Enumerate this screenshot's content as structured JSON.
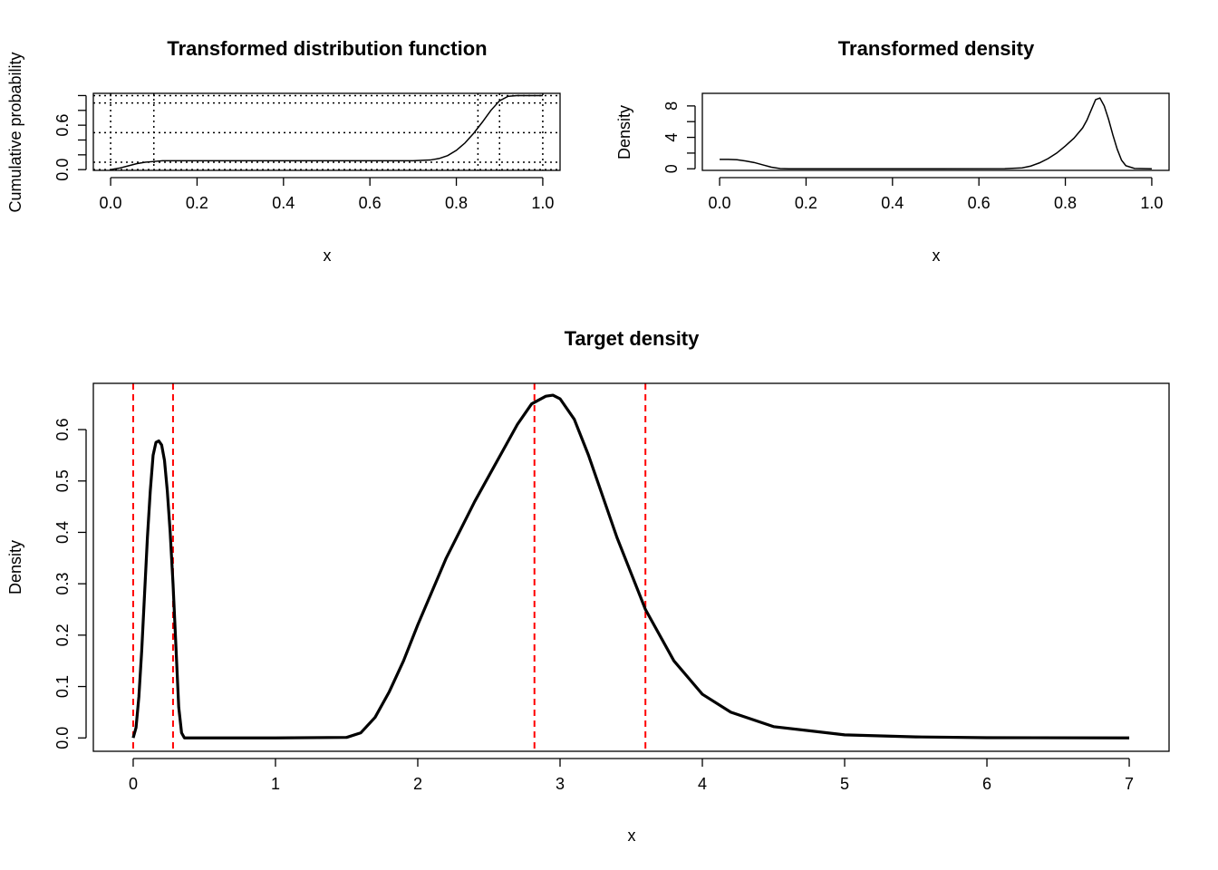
{
  "chart_data": [
    {
      "id": "cdf",
      "type": "line",
      "title": "Transformed distribution function",
      "xlabel": "x",
      "ylabel": "Cumulative probability",
      "xlim": [
        -0.04,
        1.04
      ],
      "ylim": [
        -0.01,
        1.03
      ],
      "xticks": [
        0,
        0.2,
        0.4,
        0.6,
        0.8,
        1
      ],
      "xtick_labels": [
        "0.0",
        "0.2",
        "0.4",
        "0.6",
        "0.8",
        "1.0"
      ],
      "yticks": [
        0,
        0.2,
        0.4,
        0.6,
        0.8,
        1
      ],
      "ytick_labels": [
        "0.0",
        "",
        "",
        "0.6",
        "",
        ""
      ],
      "grid_h": [
        0,
        0.1,
        0.5,
        0.9,
        1.0
      ],
      "grid_v": [
        0,
        0.1,
        0.85,
        0.9,
        1.0
      ],
      "series": [
        {
          "x": [
            0,
            0.02,
            0.04,
            0.06,
            0.08,
            0.1,
            0.12,
            0.15,
            0.2,
            0.3,
            0.4,
            0.5,
            0.6,
            0.7,
            0.74,
            0.76,
            0.78,
            0.8,
            0.82,
            0.84,
            0.86,
            0.88,
            0.9,
            0.92,
            0.94,
            0.96,
            1.0
          ],
          "y": [
            0,
            0.02,
            0.05,
            0.08,
            0.1,
            0.11,
            0.12,
            0.12,
            0.12,
            0.12,
            0.12,
            0.12,
            0.12,
            0.12,
            0.13,
            0.15,
            0.19,
            0.26,
            0.36,
            0.49,
            0.64,
            0.8,
            0.93,
            0.99,
            1.0,
            1.0,
            1.0
          ]
        }
      ]
    },
    {
      "id": "tdens",
      "type": "line",
      "title": "Transformed density",
      "xlabel": "x",
      "ylabel": "Density",
      "xlim": [
        -0.04,
        1.04
      ],
      "ylim": [
        -0.2,
        9.6
      ],
      "xticks": [
        0,
        0.2,
        0.4,
        0.6,
        0.8,
        1
      ],
      "xtick_labels": [
        "0.0",
        "0.2",
        "0.4",
        "0.6",
        "0.8",
        "1.0"
      ],
      "yticks": [
        0,
        2,
        4,
        6,
        8
      ],
      "ytick_labels": [
        "0",
        "",
        "4",
        "",
        "8"
      ],
      "series": [
        {
          "x": [
            0,
            0.02,
            0.04,
            0.06,
            0.08,
            0.1,
            0.12,
            0.14,
            0.16,
            0.3,
            0.5,
            0.66,
            0.7,
            0.72,
            0.74,
            0.76,
            0.78,
            0.8,
            0.82,
            0.84,
            0.85,
            0.86,
            0.87,
            0.88,
            0.89,
            0.9,
            0.91,
            0.92,
            0.93,
            0.94,
            0.96,
            1.0
          ],
          "y": [
            1.2,
            1.2,
            1.15,
            1.0,
            0.8,
            0.5,
            0.2,
            0.03,
            0,
            0,
            0,
            0.02,
            0.12,
            0.35,
            0.75,
            1.3,
            2.0,
            2.9,
            3.9,
            5.2,
            6.2,
            7.5,
            8.8,
            9.0,
            8.0,
            6.3,
            4.3,
            2.5,
            1.1,
            0.4,
            0.05,
            0
          ]
        }
      ]
    },
    {
      "id": "target",
      "type": "line",
      "title": "Target density",
      "xlabel": "x",
      "ylabel": "Density",
      "xlim": [
        -0.28,
        7.28
      ],
      "ylim": [
        -0.026,
        0.69
      ],
      "xticks": [
        0,
        1,
        2,
        3,
        4,
        5,
        6,
        7
      ],
      "xtick_labels": [
        "0",
        "1",
        "2",
        "3",
        "4",
        "5",
        "6",
        "7"
      ],
      "yticks": [
        0,
        0.1,
        0.2,
        0.3,
        0.4,
        0.5,
        0.6
      ],
      "ytick_labels": [
        "0.0",
        "0.1",
        "0.2",
        "0.3",
        "0.4",
        "0.5",
        "0.6"
      ],
      "vlines": [
        0,
        0.28,
        2.82,
        3.6
      ],
      "vline_color": "#ff0000",
      "line_color": "#000000",
      "series": [
        {
          "x": [
            0,
            0.02,
            0.04,
            0.06,
            0.08,
            0.1,
            0.12,
            0.14,
            0.16,
            0.18,
            0.2,
            0.22,
            0.24,
            0.26,
            0.28,
            0.3,
            0.32,
            0.34,
            0.36,
            0.5,
            1.0,
            1.5,
            1.6,
            1.7,
            1.8,
            1.9,
            2.0,
            2.2,
            2.4,
            2.6,
            2.7,
            2.8,
            2.9,
            2.95,
            3.0,
            3.1,
            3.2,
            3.3,
            3.4,
            3.5,
            3.6,
            3.8,
            4.0,
            4.2,
            4.5,
            5.0,
            5.5,
            6.0,
            7.0
          ],
          "y": [
            0.0,
            0.02,
            0.08,
            0.17,
            0.28,
            0.39,
            0.48,
            0.55,
            0.575,
            0.578,
            0.57,
            0.54,
            0.48,
            0.4,
            0.3,
            0.18,
            0.06,
            0.01,
            0.0,
            0.0,
            0.0,
            0.001,
            0.01,
            0.04,
            0.09,
            0.15,
            0.22,
            0.35,
            0.46,
            0.56,
            0.61,
            0.65,
            0.665,
            0.667,
            0.66,
            0.62,
            0.55,
            0.47,
            0.39,
            0.32,
            0.25,
            0.15,
            0.085,
            0.05,
            0.022,
            0.006,
            0.002,
            0.0005,
            0.0
          ]
        }
      ]
    }
  ]
}
